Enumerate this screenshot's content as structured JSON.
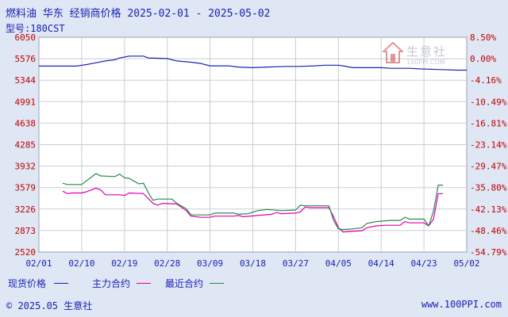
{
  "header": {
    "title": "燃料油 华东 经销商价格 2025-02-01 - 2025-05-02",
    "subtitle": "型号:180CST"
  },
  "watermark": {
    "name": "生意社",
    "url": "100PPI.COM"
  },
  "legend": {
    "title": "现货价格",
    "items": [
      {
        "label": "主力合约",
        "color": "#e000b0"
      },
      {
        "label": "最近合约",
        "color": "#2a8a4a"
      }
    ]
  },
  "footer": {
    "copyright": "© 2025.05 生意社",
    "url": "www.100PPI.com"
  },
  "colors": {
    "spot": "#1a23b5",
    "main": "#e000b0",
    "near": "#2a8a4a",
    "grid": "#c8cdd8",
    "axis_text": "#c00000"
  },
  "chart_data": {
    "type": "line",
    "left_axis": {
      "ylim": [
        2520,
        6050
      ],
      "ticks": [
        "6050",
        "5576",
        "5344",
        "4991",
        "4638",
        "4285",
        "3932",
        "3579",
        "3226",
        "2873",
        "2520"
      ]
    },
    "right_axis": {
      "ticks": [
        "8.50%",
        "0.00%",
        "-4.16%",
        "-10.49%",
        "-16.81%",
        "-23.14%",
        "-29.47%",
        "-35.80%",
        "-42.13%",
        "-48.46%",
        "-54.79%"
      ]
    },
    "x_ticks": [
      "02/01",
      "02/10",
      "02/19",
      "02/28",
      "03/09",
      "03/18",
      "03/27",
      "04/05",
      "04/14",
      "04/23",
      "05/02"
    ],
    "x_range_days": [
      0,
      90
    ],
    "series": [
      {
        "key": "spot",
        "points": [
          [
            0,
            5576
          ],
          [
            8,
            5576
          ],
          [
            9,
            5590
          ],
          [
            10,
            5600
          ],
          [
            12,
            5630
          ],
          [
            14,
            5660
          ],
          [
            16,
            5680
          ],
          [
            17,
            5710
          ],
          [
            19,
            5740
          ],
          [
            22,
            5740
          ],
          [
            23,
            5710
          ],
          [
            27,
            5700
          ],
          [
            29,
            5660
          ],
          [
            32,
            5640
          ],
          [
            34,
            5620
          ],
          [
            36,
            5580
          ],
          [
            40,
            5580
          ],
          [
            42,
            5560
          ],
          [
            45,
            5550
          ],
          [
            48,
            5560
          ],
          [
            52,
            5570
          ],
          [
            55,
            5570
          ],
          [
            58,
            5580
          ],
          [
            60,
            5590
          ],
          [
            63,
            5590
          ],
          [
            64,
            5580
          ],
          [
            66,
            5550
          ],
          [
            72,
            5550
          ],
          [
            74,
            5540
          ],
          [
            78,
            5540
          ],
          [
            80,
            5530
          ],
          [
            84,
            5520
          ],
          [
            88,
            5510
          ],
          [
            90,
            5510
          ]
        ]
      },
      {
        "key": "main",
        "points": [
          [
            5,
            3520
          ],
          [
            6,
            3480
          ],
          [
            7,
            3490
          ],
          [
            9,
            3490
          ],
          [
            10,
            3510
          ],
          [
            12,
            3570
          ],
          [
            13,
            3540
          ],
          [
            14,
            3460
          ],
          [
            17,
            3460
          ],
          [
            18,
            3450
          ],
          [
            19,
            3490
          ],
          [
            22,
            3480
          ],
          [
            24,
            3320
          ],
          [
            25,
            3290
          ],
          [
            26,
            3320
          ],
          [
            29,
            3310
          ],
          [
            31,
            3200
          ],
          [
            32,
            3110
          ],
          [
            34,
            3090
          ],
          [
            36,
            3090
          ],
          [
            37,
            3110
          ],
          [
            41,
            3110
          ],
          [
            42,
            3120
          ],
          [
            43,
            3100
          ],
          [
            46,
            3120
          ],
          [
            49,
            3140
          ],
          [
            50,
            3170
          ],
          [
            51,
            3150
          ],
          [
            54,
            3160
          ],
          [
            55,
            3180
          ],
          [
            56,
            3260
          ],
          [
            57,
            3250
          ],
          [
            61,
            3250
          ],
          [
            62,
            3100
          ],
          [
            63,
            2920
          ],
          [
            64,
            2850
          ],
          [
            66,
            2860
          ],
          [
            68,
            2870
          ],
          [
            69,
            2920
          ],
          [
            71,
            2950
          ],
          [
            73,
            2960
          ],
          [
            76,
            2960
          ],
          [
            77,
            3020
          ],
          [
            78,
            3000
          ],
          [
            81,
            3000
          ],
          [
            82,
            2950
          ],
          [
            83,
            3060
          ],
          [
            84,
            3480
          ],
          [
            85,
            3480
          ]
        ]
      },
      {
        "key": "near",
        "points": [
          [
            5,
            3650
          ],
          [
            6,
            3630
          ],
          [
            9,
            3630
          ],
          [
            10,
            3690
          ],
          [
            11,
            3750
          ],
          [
            12,
            3810
          ],
          [
            13,
            3770
          ],
          [
            16,
            3760
          ],
          [
            17,
            3800
          ],
          [
            18,
            3740
          ],
          [
            19,
            3730
          ],
          [
            21,
            3640
          ],
          [
            22,
            3650
          ],
          [
            23,
            3500
          ],
          [
            24,
            3370
          ],
          [
            25,
            3390
          ],
          [
            28,
            3390
          ],
          [
            29,
            3320
          ],
          [
            31,
            3230
          ],
          [
            32,
            3130
          ],
          [
            36,
            3130
          ],
          [
            37,
            3160
          ],
          [
            41,
            3160
          ],
          [
            42,
            3140
          ],
          [
            44,
            3150
          ],
          [
            46,
            3200
          ],
          [
            48,
            3220
          ],
          [
            51,
            3200
          ],
          [
            54,
            3210
          ],
          [
            55,
            3290
          ],
          [
            56,
            3280
          ],
          [
            61,
            3280
          ],
          [
            62,
            3040
          ],
          [
            63,
            2900
          ],
          [
            64,
            2890
          ],
          [
            66,
            2900
          ],
          [
            68,
            2920
          ],
          [
            69,
            2990
          ],
          [
            71,
            3020
          ],
          [
            74,
            3040
          ],
          [
            76,
            3040
          ],
          [
            77,
            3090
          ],
          [
            78,
            3060
          ],
          [
            81,
            3060
          ],
          [
            82,
            2950
          ],
          [
            83,
            3190
          ],
          [
            84,
            3620
          ],
          [
            85,
            3620
          ]
        ]
      }
    ]
  }
}
